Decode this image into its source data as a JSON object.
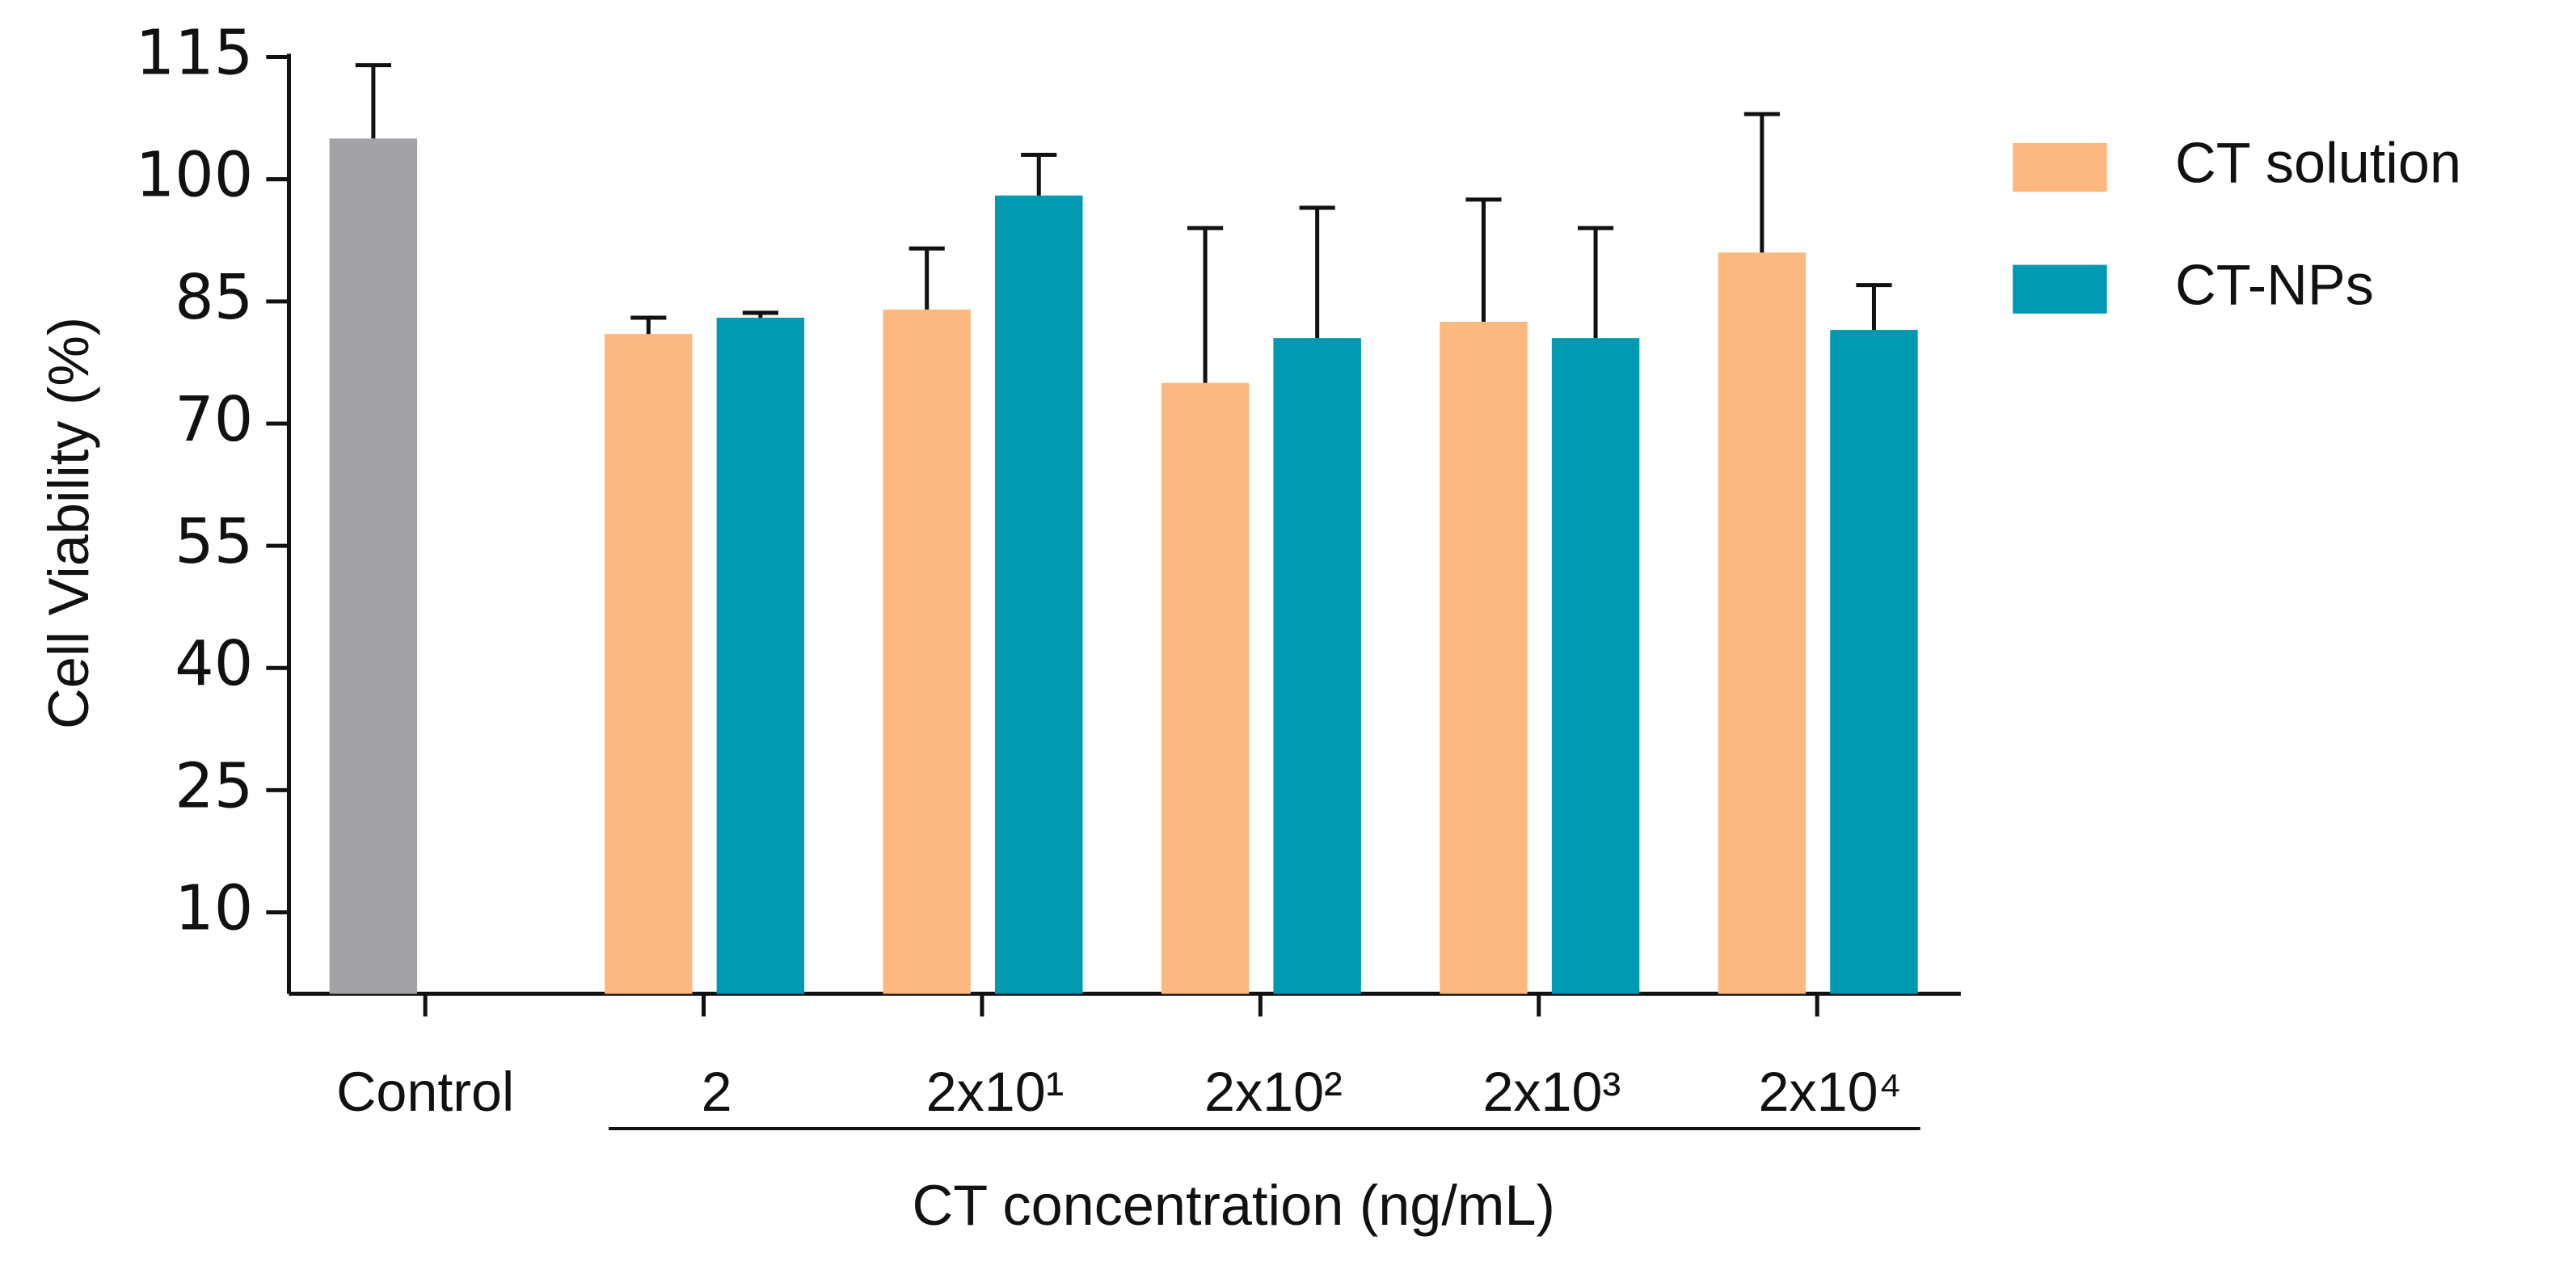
{
  "chart_data": {
    "type": "bar",
    "categories": [
      "Control",
      "2",
      "2x10¹",
      "2x10²",
      "2x10³",
      "2x10⁴"
    ],
    "x_label": "CT concentration (ng/mL)",
    "y_label": "Cell Viability (%)",
    "series": [
      {
        "color": "#a3a2a6",
        "values": [
          105,
          null,
          null,
          null,
          null,
          null
        ],
        "errors": [
          9,
          null,
          null,
          null,
          null,
          null
        ]
      },
      {
        "name": "CT solution",
        "color": "#fbb97f",
        "values": [
          null,
          81,
          84,
          75,
          82.5,
          91
        ],
        "errors": [
          null,
          2,
          7.5,
          19,
          15,
          17
        ]
      },
      {
        "name": "CT-NPs",
        "color": "#0099b1",
        "values": [
          null,
          83,
          98,
          80.5,
          80.5,
          81.5
        ],
        "errors": [
          null,
          0.6,
          5,
          16,
          13.5,
          5.5
        ]
      }
    ],
    "ylim": [
      0,
      115
    ],
    "yticks": [
      10,
      25,
      40,
      55,
      70,
      85,
      100,
      115
    ],
    "legend": "right"
  }
}
